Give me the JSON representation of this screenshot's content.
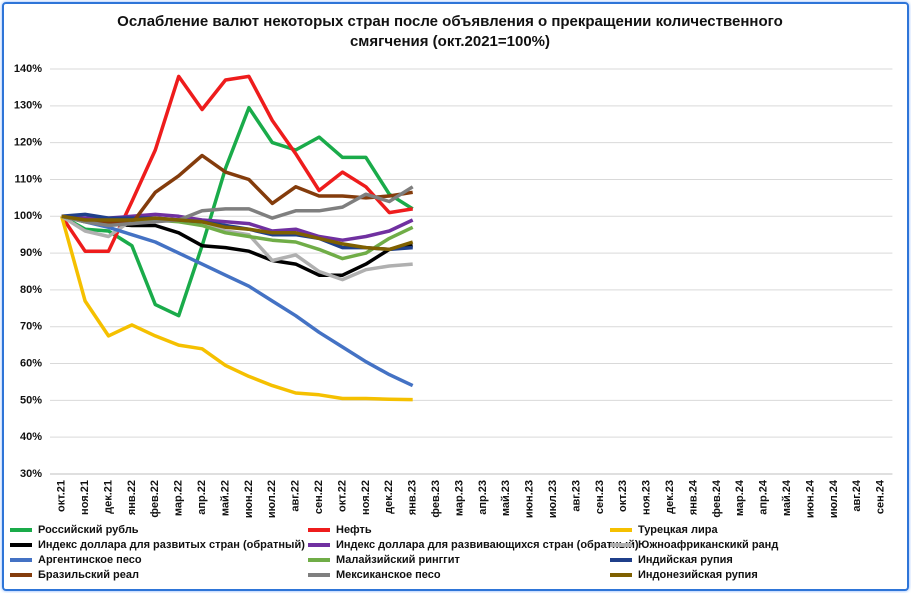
{
  "chart_data": {
    "type": "line",
    "title": "Ослабление валют некоторых стран после объявления о прекращении количественного смягчения  (окт.2021=100%)",
    "categories": [
      "окт.21",
      "ноя.21",
      "дек.21",
      "янв.22",
      "фев.22",
      "мар.22",
      "апр.22",
      "май.22",
      "июн.22",
      "июл.22",
      "авг.22",
      "сен.22",
      "окт.22",
      "ноя.22",
      "дек.22",
      "янв.23",
      "фев.23",
      "мар.23",
      "апр.23",
      "май.23",
      "июн.23",
      "июл.23",
      "авг.23",
      "сен.23",
      "окт.23",
      "ноя.23",
      "дек.23",
      "янв.24",
      "фев.24",
      "мар.24",
      "апр.24",
      "май.24",
      "июн.24",
      "июл.24",
      "авг.24",
      "сен.24"
    ],
    "ylim": [
      30,
      140
    ],
    "yticks": [
      {
        "value": 30,
        "label": "30%"
      },
      {
        "value": 40,
        "label": "40%"
      },
      {
        "value": 50,
        "label": "50%"
      },
      {
        "value": 60,
        "label": "60%"
      },
      {
        "value": 70,
        "label": "70%"
      },
      {
        "value": 80,
        "label": "80%"
      },
      {
        "value": 90,
        "label": "90%"
      },
      {
        "value": 100,
        "label": "100%"
      },
      {
        "value": 110,
        "label": "110%"
      },
      {
        "value": 120,
        "label": "120%"
      },
      {
        "value": 130,
        "label": "130%"
      },
      {
        "value": 140,
        "label": "140%"
      }
    ],
    "grid": true,
    "series": [
      {
        "name": "Российский рубль",
        "color": "#1aab4a",
        "values": [
          100,
          96.5,
          96,
          92,
          76,
          73,
          92,
          113,
          129.5,
          120,
          118,
          121.5,
          116,
          116,
          106,
          102,
          null,
          null,
          null,
          null,
          null,
          null,
          null,
          null,
          null,
          null,
          null,
          null,
          null,
          null,
          null,
          null,
          null,
          null,
          null,
          null
        ]
      },
      {
        "name": "Нефть",
        "color": "#ee1c1c",
        "values": [
          100,
          90.5,
          90.5,
          104,
          118,
          138,
          129,
          137,
          138,
          126,
          117,
          107,
          112,
          108,
          101,
          102,
          null,
          null,
          null,
          null,
          null,
          null,
          null,
          null,
          null,
          null,
          null,
          null,
          null,
          null,
          null,
          null,
          null,
          null,
          null,
          null
        ]
      },
      {
        "name": "Турецкая лира",
        "color": "#f5c000",
        "values": [
          100,
          77,
          67.5,
          70.5,
          67.5,
          65,
          64,
          59.5,
          56.5,
          54,
          52,
          51.5,
          50.5,
          50.5,
          50.3,
          50.2,
          null,
          null,
          null,
          null,
          null,
          null,
          null,
          null,
          null,
          null,
          null,
          null,
          null,
          null,
          null,
          null,
          null,
          null,
          null,
          null
        ]
      },
      {
        "name": "Индекс доллара для развитых стран (обратный)",
        "color": "#000000",
        "values": [
          100,
          99,
          98,
          97.5,
          97.5,
          95.5,
          92,
          91.5,
          90.5,
          88,
          87,
          84,
          84,
          87,
          91,
          92,
          null,
          null,
          null,
          null,
          null,
          null,
          null,
          null,
          null,
          null,
          null,
          null,
          null,
          null,
          null,
          null,
          null,
          null,
          null,
          null
        ]
      },
      {
        "name": "Индекс доллара для развивающихся стран (обратный)",
        "color": "#7030a0",
        "values": [
          100,
          99.5,
          99.5,
          100,
          100.5,
          100,
          99,
          98.5,
          98,
          96,
          96.5,
          94.5,
          93.5,
          94.5,
          96,
          99,
          null,
          null,
          null,
          null,
          null,
          null,
          null,
          null,
          null,
          null,
          null,
          null,
          null,
          null,
          null,
          null,
          null,
          null,
          null,
          null
        ]
      },
      {
        "name": "Южноафриканскикй ранд",
        "color": "#b0b0b0",
        "values": [
          100,
          96,
          94.5,
          99,
          99.5,
          99,
          98,
          96,
          95,
          88,
          89.5,
          85,
          82.8,
          85.5,
          86.5,
          87,
          null,
          null,
          null,
          null,
          null,
          null,
          null,
          null,
          null,
          null,
          null,
          null,
          null,
          null,
          null,
          null,
          null,
          null,
          null,
          null
        ]
      },
      {
        "name": "Аргентинское песо",
        "color": "#4472c4",
        "values": [
          100,
          98.5,
          97,
          95,
          93,
          90,
          87,
          84,
          81,
          77,
          73,
          68.5,
          64.5,
          60.5,
          57,
          54,
          null,
          null,
          null,
          null,
          null,
          null,
          null,
          null,
          null,
          null,
          null,
          null,
          null,
          null,
          null,
          null,
          null,
          null,
          null,
          null
        ]
      },
      {
        "name": "Малайзийский ринггит",
        "color": "#70ad47",
        "values": [
          100,
          98.5,
          98,
          98.5,
          99,
          98.5,
          97.5,
          95.5,
          94.5,
          93.5,
          93,
          91,
          88.5,
          90,
          94,
          97,
          null,
          null,
          null,
          null,
          null,
          null,
          null,
          null,
          null,
          null,
          null,
          null,
          null,
          null,
          null,
          null,
          null,
          null,
          null,
          null
        ]
      },
      {
        "name": "Индийская рупия",
        "color": "#1f3f8a",
        "values": [
          100,
          100.5,
          99.5,
          99.5,
          99.5,
          99,
          98.5,
          97.5,
          96.5,
          95,
          95,
          94,
          91.5,
          91.5,
          91,
          91.5,
          null,
          null,
          null,
          null,
          null,
          null,
          null,
          null,
          null,
          null,
          null,
          null,
          null,
          null,
          null,
          null,
          null,
          null,
          null,
          null
        ]
      },
      {
        "name": "Бразильский реал",
        "color": "#843c0c",
        "values": [
          100,
          99,
          98.5,
          98,
          106.5,
          111,
          116.5,
          112,
          110,
          103.5,
          108,
          105.5,
          105.5,
          105,
          105.5,
          106.5,
          null,
          null,
          null,
          null,
          null,
          null,
          null,
          null,
          null,
          null,
          null,
          null,
          null,
          null,
          null,
          null,
          null,
          null,
          null,
          null
        ]
      },
      {
        "name": "Мексиканское песо",
        "color": "#7f7f7f",
        "values": [
          100,
          98.5,
          97.5,
          98,
          98.5,
          99,
          101.5,
          102,
          102,
          99.5,
          101.5,
          101.5,
          102.5,
          106,
          104,
          108,
          null,
          null,
          null,
          null,
          null,
          null,
          null,
          null,
          null,
          null,
          null,
          null,
          null,
          null,
          null,
          null,
          null,
          null,
          null,
          null
        ]
      },
      {
        "name": "Индонезийская рупия",
        "color": "#7f6000",
        "values": [
          100,
          99,
          99,
          99,
          99.5,
          99,
          98.5,
          97,
          96.5,
          95.5,
          95.5,
          94,
          92.5,
          91.5,
          91,
          93,
          null,
          null,
          null,
          null,
          null,
          null,
          null,
          null,
          null,
          null,
          null,
          null,
          null,
          null,
          null,
          null,
          null,
          null,
          null,
          null
        ]
      }
    ]
  }
}
